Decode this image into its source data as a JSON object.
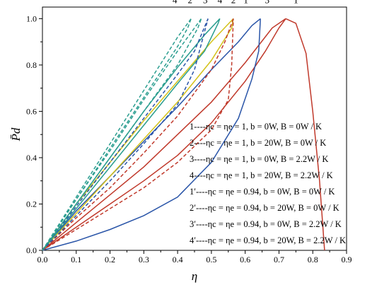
{
  "chart_data": {
    "type": "line",
    "title": "",
    "xlabel": "η",
    "ylabel": "P̄d",
    "xlim": [
      0,
      0.9
    ],
    "ylim": [
      0,
      1.05
    ],
    "x_ticks": [
      "0.0",
      "0.1",
      "0.2",
      "0.3",
      "0.4",
      "0.5",
      "0.6",
      "0.7",
      "0.8",
      "0.9"
    ],
    "y_ticks": [
      "0.0",
      "0.2",
      "0.4",
      "0.6",
      "0.8",
      "1.0"
    ],
    "grid": false,
    "legend_position": "right",
    "series": [
      {
        "name": "1",
        "legend": "1----ηc = ηe = 1,  b = 0W,  B = 0W / K",
        "color": "#c0392b",
        "dash": "solid",
        "lower": [
          [
            0,
            0
          ],
          [
            0.1,
            0.1
          ],
          [
            0.2,
            0.2
          ],
          [
            0.3,
            0.3
          ],
          [
            0.4,
            0.41
          ],
          [
            0.5,
            0.55
          ],
          [
            0.6,
            0.73
          ],
          [
            0.66,
            0.86
          ],
          [
            0.7,
            0.96
          ],
          [
            0.72,
            1.0
          ]
        ],
        "upper": [
          [
            0,
            0
          ],
          [
            0.1,
            0.12
          ],
          [
            0.2,
            0.24
          ],
          [
            0.3,
            0.36
          ],
          [
            0.4,
            0.5
          ],
          [
            0.5,
            0.64
          ],
          [
            0.6,
            0.81
          ],
          [
            0.68,
            0.96
          ],
          [
            0.72,
            1.0
          ]
        ],
        "tail": [
          [
            0.72,
            1.0
          ],
          [
            0.75,
            0.98
          ],
          [
            0.78,
            0.85
          ],
          [
            0.8,
            0.6
          ],
          [
            0.82,
            0.3
          ],
          [
            0.835,
            0.0
          ]
        ]
      },
      {
        "name": "3",
        "legend": "3----ηc = ηe = 1,  b = 0W,  B = 2.2W / K",
        "color": "#2a55a8",
        "dash": "solid",
        "lower": [
          [
            0,
            0
          ],
          [
            0.1,
            0.04
          ],
          [
            0.2,
            0.09
          ],
          [
            0.3,
            0.15
          ],
          [
            0.4,
            0.23
          ],
          [
            0.5,
            0.38
          ],
          [
            0.58,
            0.57
          ],
          [
            0.62,
            0.74
          ],
          [
            0.64,
            0.86
          ],
          [
            0.645,
            1.0
          ]
        ],
        "upper": [
          [
            0,
            0
          ],
          [
            0.1,
            0.17
          ],
          [
            0.2,
            0.32
          ],
          [
            0.3,
            0.47
          ],
          [
            0.4,
            0.62
          ],
          [
            0.5,
            0.78
          ],
          [
            0.58,
            0.9
          ],
          [
            0.62,
            0.97
          ],
          [
            0.645,
            1.0
          ]
        ]
      },
      {
        "name": "4",
        "legend": "4----ηc = ηe = 1,  b = 20W,  B = 2.2W / K",
        "color": "#d4c21a",
        "dash": "solid",
        "lower": [
          [
            0,
            0
          ],
          [
            0.1,
            0.16
          ],
          [
            0.2,
            0.32
          ],
          [
            0.3,
            0.48
          ],
          [
            0.4,
            0.64
          ],
          [
            0.5,
            0.82
          ],
          [
            0.56,
            0.96
          ],
          [
            0.565,
            1.0
          ]
        ],
        "upper": [
          [
            0,
            0
          ],
          [
            0.1,
            0.2
          ],
          [
            0.2,
            0.38
          ],
          [
            0.3,
            0.56
          ],
          [
            0.4,
            0.73
          ],
          [
            0.5,
            0.9
          ],
          [
            0.565,
            1.0
          ]
        ]
      },
      {
        "name": "2",
        "legend": "2----ηc = ηe = 1,  b = 20W,  B = 0W / K",
        "color": "#2a9d8f",
        "dash": "solid",
        "lower": [
          [
            0,
            0
          ],
          [
            0.1,
            0.18
          ],
          [
            0.2,
            0.36
          ],
          [
            0.3,
            0.54
          ],
          [
            0.4,
            0.72
          ],
          [
            0.48,
            0.86
          ],
          [
            0.52,
            0.98
          ],
          [
            0.525,
            1.0
          ]
        ],
        "upper": [
          [
            0,
            0
          ],
          [
            0.1,
            0.2
          ],
          [
            0.2,
            0.4
          ],
          [
            0.3,
            0.6
          ],
          [
            0.4,
            0.79
          ],
          [
            0.48,
            0.93
          ],
          [
            0.525,
            1.0
          ]
        ]
      },
      {
        "name": "1′",
        "legend": "1′----ηc = ηe = 0.94,  b = 0W,  B = 0W / K",
        "color": "#c0392b",
        "dash": "dashed",
        "lower": [
          [
            0,
            0
          ],
          [
            0.1,
            0.09
          ],
          [
            0.2,
            0.18
          ],
          [
            0.3,
            0.27
          ],
          [
            0.4,
            0.38
          ],
          [
            0.5,
            0.52
          ],
          [
            0.55,
            0.65
          ],
          [
            0.56,
            0.8
          ],
          [
            0.565,
            1.0
          ]
        ],
        "upper": [
          [
            0,
            0
          ],
          [
            0.1,
            0.14
          ],
          [
            0.2,
            0.27
          ],
          [
            0.3,
            0.42
          ],
          [
            0.4,
            0.58
          ],
          [
            0.5,
            0.78
          ],
          [
            0.54,
            0.9
          ],
          [
            0.565,
            1.0
          ]
        ]
      },
      {
        "name": "3′",
        "legend": "3′----ηc = ηe = 0.94,  b = 0W,  B = 2.2W / K",
        "color": "#2a55a8",
        "dash": "dashed",
        "lower": [
          [
            0,
            0
          ],
          [
            0.1,
            0.15
          ],
          [
            0.2,
            0.3
          ],
          [
            0.3,
            0.46
          ],
          [
            0.4,
            0.63
          ],
          [
            0.45,
            0.78
          ],
          [
            0.49,
            1.0
          ]
        ],
        "upper": [
          [
            0,
            0
          ],
          [
            0.1,
            0.19
          ],
          [
            0.2,
            0.38
          ],
          [
            0.3,
            0.57
          ],
          [
            0.4,
            0.76
          ],
          [
            0.45,
            0.86
          ],
          [
            0.49,
            1.0
          ]
        ]
      },
      {
        "name": "2′",
        "legend": "2′----ηc = ηe = 0.94,  b = 20W,  B = 0W / K",
        "color": "#2a9d8f",
        "dash": "dashed",
        "lower": [
          [
            0,
            0
          ],
          [
            0.1,
            0.2
          ],
          [
            0.2,
            0.4
          ],
          [
            0.3,
            0.6
          ],
          [
            0.4,
            0.8
          ],
          [
            0.46,
            0.96
          ],
          [
            0.47,
            1.0
          ]
        ],
        "upper": [
          [
            0,
            0
          ],
          [
            0.1,
            0.22
          ],
          [
            0.2,
            0.43
          ],
          [
            0.3,
            0.65
          ],
          [
            0.4,
            0.86
          ],
          [
            0.47,
            1.0
          ]
        ]
      },
      {
        "name": "4′",
        "legend": "4′----ηc = ηe = 0.94,  b = 20W,  B = 2.2W / K",
        "color": "#2a9d8f",
        "dash": "dashed",
        "lower": [
          [
            0,
            0
          ],
          [
            0.1,
            0.22
          ],
          [
            0.2,
            0.44
          ],
          [
            0.3,
            0.66
          ],
          [
            0.4,
            0.88
          ],
          [
            0.43,
            0.96
          ],
          [
            0.44,
            1.0
          ]
        ],
        "upper": [
          [
            0,
            0
          ],
          [
            0.1,
            0.23
          ],
          [
            0.2,
            0.46
          ],
          [
            0.3,
            0.69
          ],
          [
            0.4,
            0.92
          ],
          [
            0.44,
            1.0
          ]
        ]
      }
    ],
    "curve_labels": [
      {
        "text": "1",
        "x": 0.75,
        "y": 1.06
      },
      {
        "text": "3",
        "x": 0.665,
        "y": 1.06
      },
      {
        "text": "1′",
        "x": 0.605,
        "y": 1.06
      },
      {
        "text": "2",
        "x": 0.565,
        "y": 1.06
      },
      {
        "text": "4",
        "x": 0.525,
        "y": 1.06
      },
      {
        "text": "3′",
        "x": 0.485,
        "y": 1.06
      },
      {
        "text": "2′",
        "x": 0.44,
        "y": 1.06
      },
      {
        "text": "4′",
        "x": 0.395,
        "y": 1.06
      }
    ],
    "legend_order": [
      "1",
      "2",
      "3",
      "4",
      "1′",
      "2′",
      "3′",
      "4′"
    ]
  }
}
